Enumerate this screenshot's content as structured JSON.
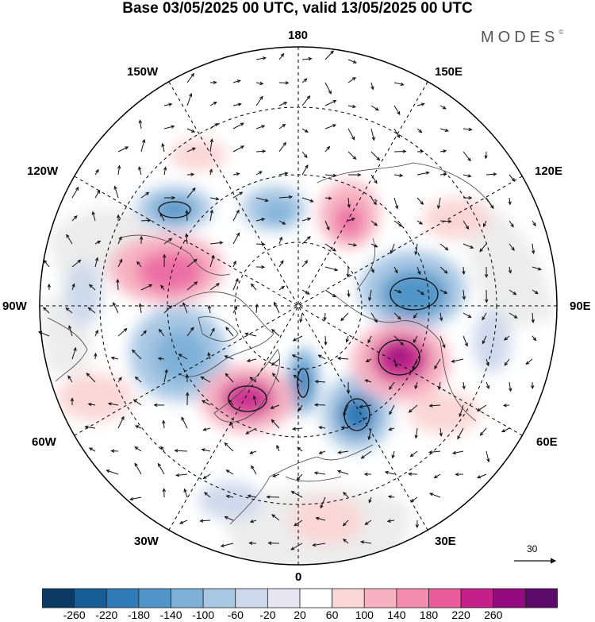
{
  "title": "Base 03/05/2025 00 UTC, valid 13/05/2025 00 UTC",
  "brand": "MODES",
  "brand_mark": "©",
  "map": {
    "projection": "north-polar-stereographic",
    "longitude_labels": {
      "lon_180": "180",
      "lon_150w": "150W",
      "lon_150e": "150E",
      "lon_120w": "120W",
      "lon_120e": "120E",
      "lon_90w": "90W",
      "lon_90e": "90E",
      "lon_60w": "60W",
      "lon_60e": "60E",
      "lon_30w": "30W",
      "lon_30e": "30E",
      "lon_0": "0"
    },
    "vector_scale_label": "30",
    "colors": {
      "graticule": "#000000",
      "coastline": "#555555",
      "ocean_outline": "#000000",
      "neutral_fill": "#ececec"
    }
  },
  "colorbar": {
    "colors": [
      "#0b3a63",
      "#175d96",
      "#2f7bb8",
      "#5195c8",
      "#7fb1d8",
      "#a9c8e4",
      "#cfd9ec",
      "#e8e6f2",
      "#ffffff",
      "#fbd6d6",
      "#f7b2c2",
      "#f38cae",
      "#e95d9c",
      "#c5208a",
      "#940b80",
      "#5b0a6a"
    ],
    "tick_labels": [
      "-260",
      "-220",
      "-180",
      "-140",
      "-100",
      "-60",
      "-20",
      "20",
      "60",
      "100",
      "140",
      "180",
      "220",
      "260"
    ]
  }
}
